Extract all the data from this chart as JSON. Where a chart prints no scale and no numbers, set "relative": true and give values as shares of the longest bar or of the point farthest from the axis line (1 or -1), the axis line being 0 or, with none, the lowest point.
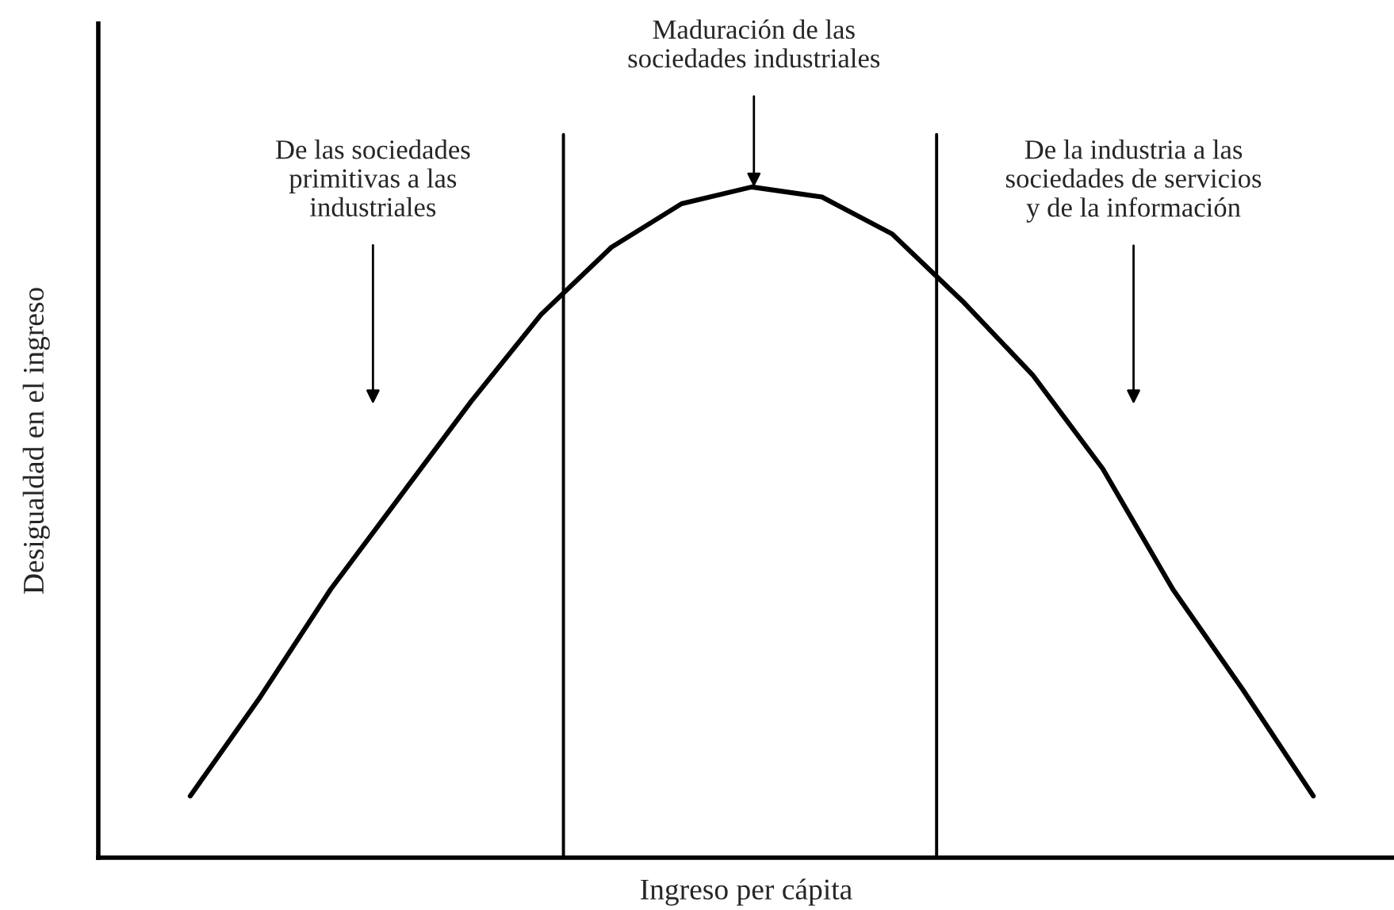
{
  "chart_data": {
    "type": "line",
    "relative": true,
    "xlabel": "Ingreso per cápita",
    "ylabel": "Desigualdad en el ingreso",
    "categories": [
      null,
      null,
      null,
      null,
      null,
      null,
      null,
      null,
      null,
      null,
      null,
      null,
      null,
      null,
      null,
      null,
      null
    ],
    "series": [
      {
        "color": "#000000",
        "values": [
          0.092,
          0.24,
          0.4,
          0.54,
          0.68,
          0.81,
          0.91,
          0.975,
          1,
          0.985,
          0.93,
          0.83,
          0.72,
          0.58,
          0.4,
          0.25,
          0.092
        ]
      }
    ],
    "annotations": [
      "De las sociedades\nprimitivas a las\nindustriales",
      "Maduración de las\nsociedades industriales",
      "De la industria a las\nsociedades de servicios\ny de la información"
    ],
    "legend": false,
    "marker": "none",
    "line_style": "solid"
  }
}
